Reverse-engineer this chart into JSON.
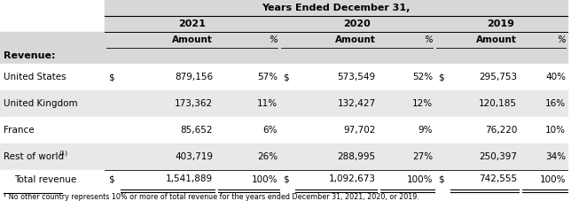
{
  "title": "Years Ended December 31,",
  "years": [
    "2021",
    "2020",
    "2019"
  ],
  "section_label": "Revenue:",
  "rows": [
    [
      "United States",
      true,
      "879,156",
      "57%",
      true,
      "573,549",
      "52%",
      true,
      "295,753",
      "40%",
      false
    ],
    [
      "United Kingdom",
      false,
      "173,362",
      "11%",
      false,
      "132,427",
      "12%",
      false,
      "120,185",
      "16%",
      true
    ],
    [
      "France",
      false,
      "85,652",
      "6%",
      false,
      "97,702",
      "9%",
      false,
      "76,220",
      "10%",
      false
    ],
    [
      "Rest of world",
      false,
      "403,719",
      "26%",
      false,
      "288,995",
      "27%",
      false,
      "250,397",
      "34%",
      true
    ]
  ],
  "total": [
    true,
    "1,541,889",
    "100%",
    true,
    "1,092,673",
    "100%",
    true,
    "742,555",
    "100%"
  ],
  "footnote": "¹ No other country represents 10% or more of total revenue for the years ended December 31, 2021, 2020, or 2019.",
  "bg": "#ffffff",
  "gray_bg": "#d8d8d8",
  "alt_bg": "#e8e8e8"
}
